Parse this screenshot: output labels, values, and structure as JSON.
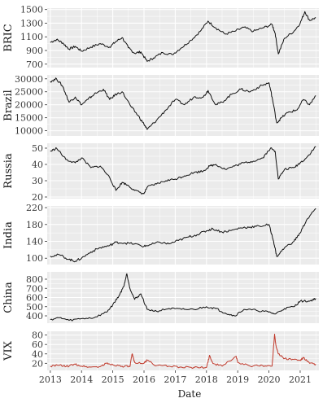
{
  "figure": {
    "x_title": "Date",
    "panel_bg": "#ebebeb",
    "grid_color": "#ffffff",
    "line_color_default": "#111111",
    "line_color_vix": "#c0392b"
  },
  "chart_data": [
    {
      "type": "line",
      "ylabel": "BRIC",
      "yticks": [
        700,
        900,
        1100,
        1300,
        1500
      ],
      "ylim": [
        650,
        1520
      ],
      "xlim": [
        2012.9,
        2021.6
      ],
      "series": [
        {
          "x": [
            2013.0,
            2013.2,
            2013.4,
            2013.6,
            2013.8,
            2014.0,
            2014.3,
            2014.6,
            2014.9,
            2015.1,
            2015.3,
            2015.5,
            2015.7,
            2015.9,
            2016.1,
            2016.3,
            2016.6,
            2016.9,
            2017.2,
            2017.5,
            2017.8,
            2018.05,
            2018.3,
            2018.6,
            2018.9,
            2019.2,
            2019.5,
            2019.8,
            2020.1,
            2020.2,
            2020.3,
            2020.5,
            2020.8,
            2021.0,
            2021.15,
            2021.3,
            2021.5
          ],
          "y": [
            1020,
            1060,
            1010,
            920,
            960,
            890,
            950,
            1000,
            950,
            1030,
            1090,
            940,
            860,
            880,
            740,
            790,
            870,
            840,
            940,
            1050,
            1180,
            1330,
            1230,
            1140,
            1180,
            1240,
            1180,
            1230,
            1280,
            1150,
            850,
            1080,
            1180,
            1300,
            1470,
            1340,
            1380
          ]
        }
      ]
    },
    {
      "type": "line",
      "ylabel": "Brazil",
      "yticks": [
        10000,
        15000,
        20000,
        25000,
        30000
      ],
      "ylim": [
        8000,
        31500
      ],
      "xlim": [
        2012.9,
        2021.6
      ],
      "series": [
        {
          "x": [
            2013.0,
            2013.2,
            2013.4,
            2013.6,
            2013.8,
            2014.0,
            2014.2,
            2014.4,
            2014.7,
            2014.9,
            2015.1,
            2015.3,
            2015.6,
            2015.8,
            2016.0,
            2016.1,
            2016.4,
            2016.7,
            2017.0,
            2017.3,
            2017.6,
            2017.9,
            2018.05,
            2018.3,
            2018.5,
            2018.8,
            2019.1,
            2019.4,
            2019.7,
            2020.0,
            2020.1,
            2020.25,
            2020.4,
            2020.6,
            2020.9,
            2021.1,
            2021.3,
            2021.5
          ],
          "y": [
            29000,
            30000,
            27000,
            21000,
            23000,
            20000,
            22000,
            24000,
            26000,
            22000,
            24000,
            25000,
            19000,
            16000,
            12500,
            10500,
            14000,
            18000,
            22000,
            20000,
            23000,
            23000,
            25500,
            20000,
            21000,
            24000,
            26000,
            25000,
            27000,
            28500,
            23000,
            13000,
            15000,
            17000,
            18000,
            22000,
            20000,
            23500
          ]
        }
      ]
    },
    {
      "type": "line",
      "ylabel": "Russia",
      "yticks": [
        20,
        30,
        40,
        50
      ],
      "ylim": [
        19,
        53
      ],
      "xlim": [
        2012.9,
        2021.6
      ],
      "series": [
        {
          "x": [
            2013.0,
            2013.2,
            2013.5,
            2013.8,
            2014.0,
            2014.3,
            2014.6,
            2014.9,
            2015.1,
            2015.3,
            2015.5,
            2015.7,
            2016.0,
            2016.1,
            2016.4,
            2016.7,
            2017.0,
            2017.3,
            2017.6,
            2017.9,
            2018.1,
            2018.3,
            2018.6,
            2018.9,
            2019.2,
            2019.5,
            2019.8,
            2020.05,
            2020.2,
            2020.3,
            2020.5,
            2020.8,
            2021.0,
            2021.2,
            2021.5
          ],
          "y": [
            48,
            50,
            43,
            41,
            44,
            38,
            39,
            32,
            24,
            29,
            27,
            24,
            22,
            26,
            28,
            30,
            31,
            33,
            35,
            36,
            39,
            40,
            37,
            39,
            41,
            42,
            44,
            50,
            48,
            31,
            37,
            38,
            41,
            44,
            51
          ]
        }
      ]
    },
    {
      "type": "line",
      "ylabel": "India",
      "yticks": [
        100,
        140,
        180,
        220
      ],
      "ylim": [
        85,
        224
      ],
      "xlim": [
        2012.9,
        2021.6
      ],
      "series": [
        {
          "x": [
            2013.0,
            2013.3,
            2013.6,
            2013.8,
            2014.0,
            2014.3,
            2014.6,
            2014.9,
            2015.1,
            2015.4,
            2015.7,
            2016.0,
            2016.2,
            2016.5,
            2016.8,
            2017.1,
            2017.4,
            2017.7,
            2018.0,
            2018.2,
            2018.5,
            2018.8,
            2019.1,
            2019.4,
            2019.7,
            2020.0,
            2020.15,
            2020.25,
            2020.5,
            2020.8,
            2021.0,
            2021.2,
            2021.5
          ],
          "y": [
            105,
            108,
            97,
            93,
            100,
            115,
            125,
            130,
            138,
            136,
            134,
            128,
            132,
            138,
            134,
            142,
            150,
            156,
            165,
            170,
            162,
            166,
            172,
            174,
            176,
            180,
            140,
            104,
            125,
            140,
            160,
            190,
            218
          ]
        }
      ]
    },
    {
      "type": "line",
      "ylabel": "China",
      "yticks": [
        400,
        500,
        600,
        700,
        800
      ],
      "ylim": [
        320,
        880
      ],
      "xlim": [
        2012.9,
        2021.6
      ],
      "series": [
        {
          "x": [
            2013.0,
            2013.3,
            2013.6,
            2014.0,
            2014.4,
            2014.8,
            2015.0,
            2015.2,
            2015.35,
            2015.45,
            2015.55,
            2015.7,
            2015.9,
            2016.1,
            2016.4,
            2016.8,
            2017.2,
            2017.6,
            2018.0,
            2018.3,
            2018.6,
            2018.9,
            2019.2,
            2019.6,
            2020.0,
            2020.2,
            2020.5,
            2020.8,
            2021.0,
            2021.3,
            2021.5
          ],
          "y": [
            360,
            380,
            350,
            370,
            380,
            440,
            520,
            620,
            720,
            860,
            700,
            580,
            640,
            470,
            450,
            480,
            470,
            470,
            500,
            480,
            430,
            400,
            470,
            460,
            440,
            420,
            480,
            500,
            560,
            560,
            590
          ]
        }
      ]
    },
    {
      "type": "line",
      "ylabel": "VIX",
      "yticks": [
        20,
        40,
        60,
        80
      ],
      "ylim": [
        5,
        88
      ],
      "xlim": [
        2012.9,
        2021.6
      ],
      "xticks": [
        2013,
        2014,
        2015,
        2016,
        2017,
        2018,
        2019,
        2020,
        2021
      ],
      "xlabel": "Date",
      "series": [
        {
          "x": [
            2013.0,
            2013.3,
            2013.5,
            2013.8,
            2014.0,
            2014.3,
            2014.6,
            2014.8,
            2015.0,
            2015.3,
            2015.55,
            2015.62,
            2015.7,
            2016.0,
            2016.1,
            2016.4,
            2016.8,
            2017.2,
            2017.6,
            2018.0,
            2018.1,
            2018.2,
            2018.5,
            2018.95,
            2019.0,
            2019.4,
            2019.8,
            2020.1,
            2020.18,
            2020.22,
            2020.3,
            2020.5,
            2020.8,
            2021.0,
            2021.1,
            2021.3,
            2021.5
          ],
          "y": [
            14,
            16,
            13,
            18,
            14,
            12,
            13,
            20,
            17,
            14,
            13,
            40,
            22,
            20,
            27,
            15,
            14,
            12,
            11,
            11,
            37,
            20,
            14,
            35,
            22,
            14,
            15,
            14,
            82,
            60,
            40,
            30,
            28,
            26,
            32,
            20,
            18
          ]
        }
      ]
    }
  ]
}
